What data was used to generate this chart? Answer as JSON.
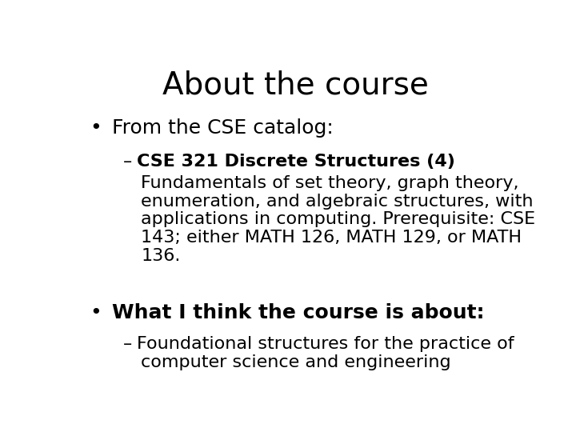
{
  "title": "About the course",
  "title_fontsize": 28,
  "background_color": "#ffffff",
  "text_color": "#000000",
  "bullet1": "From the CSE catalog:",
  "bullet1_fontsize": 18,
  "sub1_bold": "CSE 321 Discrete Structures (4)",
  "sub1_body_lines": [
    "Fundamentals of set theory, graph theory,",
    "enumeration, and algebraic structures, with",
    "applications in computing. Prerequisite: CSE",
    "143; either MATH 126, MATH 129, or MATH",
    "136."
  ],
  "sub1_fontsize": 16,
  "bullet2": "What I think the course is about:",
  "bullet2_fontsize": 18,
  "sub2_lines": [
    "Foundational structures for the practice of",
    "computer science and engineering"
  ],
  "sub2_fontsize": 16,
  "font_family": "DejaVu Sans"
}
